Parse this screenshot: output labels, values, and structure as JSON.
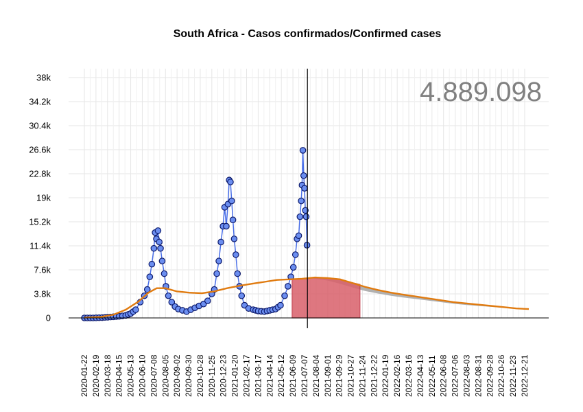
{
  "chart_data": {
    "type": "line",
    "title": "South Africa - Casos confirmados/Confirmed cases",
    "total_label": "4.889.098",
    "ylim": [
      0,
      38000
    ],
    "y_ticks": [
      0,
      3800,
      7600,
      11400,
      15200,
      19000,
      22800,
      26600,
      30400,
      34200,
      38000
    ],
    "y_tick_labels": [
      "0",
      "3.8k",
      "7.6k",
      "11.4k",
      "15.2k",
      "19k",
      "22.8k",
      "26.6k",
      "30.4k",
      "34.2k",
      "38k"
    ],
    "x_range": [
      "2020-01-22",
      "2022-12-31"
    ],
    "x_ticks": [
      "2020-01-22",
      "2020-02-19",
      "2020-03-18",
      "2020-04-15",
      "2020-05-13",
      "2020-06-10",
      "2020-07-08",
      "2020-08-05",
      "2020-09-02",
      "2020-09-30",
      "2020-10-28",
      "2020-11-25",
      "2020-12-23",
      "2021-01-20",
      "2021-02-17",
      "2021-03-17",
      "2021-04-14",
      "2021-05-12",
      "2021-06-09",
      "2021-07-07",
      "2021-08-04",
      "2021-09-01",
      "2021-09-29",
      "2021-10-27",
      "2021-11-24",
      "2021-12-22",
      "2022-01-19",
      "2022-02-16",
      "2022-03-16",
      "2022-04-13",
      "2022-05-11",
      "2022-06-08",
      "2022-07-06",
      "2022-08-03",
      "2022-08-31",
      "2022-09-28",
      "2022-10-26",
      "2022-11-23",
      "2022-12-21"
    ],
    "current_date": "2021-07-14",
    "grid": true,
    "colors": {
      "points_fill": "#6b8ef0",
      "points_stroke": "#0d1a6b",
      "observed_line": "#4a6fe8",
      "fitted_curve": "#e07b10",
      "forecast_band": "#a9a9a9",
      "forecast_area": "#d9606a",
      "current_date_line": "#000000",
      "grid": "#e6e6e6"
    },
    "series": [
      {
        "kind": "observed",
        "points": [
          [
            "2020-01-22",
            0
          ],
          [
            "2020-02-12",
            0
          ],
          [
            "2020-03-05",
            50
          ],
          [
            "2020-03-25",
            150
          ],
          [
            "2020-04-15",
            250
          ],
          [
            "2020-05-01",
            400
          ],
          [
            "2020-05-13",
            700
          ],
          [
            "2020-05-25",
            1300
          ],
          [
            "2020-06-05",
            2500
          ],
          [
            "2020-06-15",
            3500
          ],
          [
            "2020-06-22",
            4500
          ],
          [
            "2020-06-28",
            6500
          ],
          [
            "2020-07-03",
            8500
          ],
          [
            "2020-07-08",
            11000
          ],
          [
            "2020-07-11",
            13500
          ],
          [
            "2020-07-14",
            12500
          ],
          [
            "2020-07-18",
            13800
          ],
          [
            "2020-07-21",
            12000
          ],
          [
            "2020-07-24",
            11000
          ],
          [
            "2020-07-28",
            9000
          ],
          [
            "2020-08-02",
            7000
          ],
          [
            "2020-08-06",
            5000
          ],
          [
            "2020-08-12",
            3500
          ],
          [
            "2020-08-20",
            2500
          ],
          [
            "2020-08-28",
            1800
          ],
          [
            "2020-09-05",
            1400
          ],
          [
            "2020-09-15",
            1200
          ],
          [
            "2020-09-25",
            1000
          ],
          [
            "2020-10-05",
            1300
          ],
          [
            "2020-10-15",
            1600
          ],
          [
            "2020-10-25",
            1900
          ],
          [
            "2020-11-05",
            2200
          ],
          [
            "2020-11-15",
            2700
          ],
          [
            "2020-11-25",
            3800
          ],
          [
            "2020-12-01",
            4500
          ],
          [
            "2020-12-07",
            7000
          ],
          [
            "2020-12-12",
            9000
          ],
          [
            "2020-12-17",
            12000
          ],
          [
            "2020-12-22",
            14500
          ],
          [
            "2020-12-26",
            17500
          ],
          [
            "2020-12-30",
            14500
          ],
          [
            "2021-01-03",
            18000
          ],
          [
            "2021-01-06",
            21800
          ],
          [
            "2021-01-09",
            21500
          ],
          [
            "2021-01-12",
            18500
          ],
          [
            "2021-01-15",
            15500
          ],
          [
            "2021-01-18",
            12500
          ],
          [
            "2021-01-22",
            10000
          ],
          [
            "2021-01-26",
            7000
          ],
          [
            "2021-01-31",
            5000
          ],
          [
            "2021-02-05",
            3500
          ],
          [
            "2021-02-12",
            2000
          ],
          [
            "2021-02-22",
            1500
          ],
          [
            "2021-03-05",
            1300
          ],
          [
            "2021-03-17",
            1100
          ],
          [
            "2021-04-01",
            1000
          ],
          [
            "2021-04-14",
            1200
          ],
          [
            "2021-04-28",
            1400
          ],
          [
            "2021-05-10",
            2000
          ],
          [
            "2021-05-20",
            3500
          ],
          [
            "2021-05-28",
            5000
          ],
          [
            "2021-06-04",
            6500
          ],
          [
            "2021-06-10",
            8000
          ],
          [
            "2021-06-15",
            10000
          ],
          [
            "2021-06-19",
            12500
          ],
          [
            "2021-06-23",
            13000
          ],
          [
            "2021-06-26",
            16000
          ],
          [
            "2021-06-29",
            18500
          ],
          [
            "2021-07-01",
            21000
          ],
          [
            "2021-07-03",
            26500
          ],
          [
            "2021-07-05",
            22500
          ],
          [
            "2021-07-07",
            20500
          ],
          [
            "2021-07-09",
            17000
          ],
          [
            "2021-07-11",
            16000
          ],
          [
            "2021-07-13",
            11500
          ]
        ]
      },
      {
        "kind": "fitted",
        "points": [
          [
            "2020-01-22",
            50
          ],
          [
            "2020-03-01",
            150
          ],
          [
            "2020-04-01",
            500
          ],
          [
            "2020-05-01",
            1300
          ],
          [
            "2020-06-01",
            2600
          ],
          [
            "2020-06-25",
            4000
          ],
          [
            "2020-07-15",
            4700
          ],
          [
            "2020-08-05",
            4700
          ],
          [
            "2020-09-01",
            4200
          ],
          [
            "2020-10-01",
            4000
          ],
          [
            "2020-11-01",
            3900
          ],
          [
            "2020-12-01",
            4200
          ],
          [
            "2021-01-01",
            4700
          ],
          [
            "2021-02-01",
            5100
          ],
          [
            "2021-03-01",
            5400
          ],
          [
            "2021-04-01",
            5700
          ],
          [
            "2021-05-01",
            6000
          ],
          [
            "2021-06-01",
            6100
          ],
          [
            "2021-07-01",
            6200
          ],
          [
            "2021-08-01",
            6400
          ],
          [
            "2021-09-01",
            6300
          ],
          [
            "2021-10-01",
            6100
          ],
          [
            "2021-11-01",
            5500
          ],
          [
            "2021-12-01",
            4900
          ],
          [
            "2022-01-01",
            4400
          ],
          [
            "2022-02-01",
            4000
          ],
          [
            "2022-03-01",
            3700
          ],
          [
            "2022-04-01",
            3400
          ],
          [
            "2022-05-01",
            3100
          ],
          [
            "2022-06-01",
            2800
          ],
          [
            "2022-07-01",
            2500
          ],
          [
            "2022-08-01",
            2300
          ],
          [
            "2022-09-01",
            2100
          ],
          [
            "2022-10-01",
            1900
          ],
          [
            "2022-11-01",
            1700
          ],
          [
            "2022-12-01",
            1500
          ],
          [
            "2022-12-31",
            1400
          ]
        ]
      },
      {
        "kind": "forecast_band_lower",
        "points": [
          [
            "2021-07-14",
            6300
          ],
          [
            "2021-08-01",
            6200
          ],
          [
            "2021-09-01",
            5900
          ],
          [
            "2021-10-01",
            5400
          ],
          [
            "2021-11-01",
            4800
          ],
          [
            "2021-12-01",
            4250
          ],
          [
            "2022-01-01",
            3850
          ],
          [
            "2022-02-01",
            3500
          ],
          [
            "2022-03-01",
            3250
          ],
          [
            "2022-04-01",
            3000
          ],
          [
            "2022-05-01",
            2750
          ],
          [
            "2022-06-01",
            2500
          ],
          [
            "2022-07-01",
            2250
          ],
          [
            "2022-08-01",
            2050
          ],
          [
            "2022-09-01",
            1900
          ],
          [
            "2022-10-01",
            1750
          ],
          [
            "2022-11-01",
            1600
          ],
          [
            "2022-12-01",
            1450
          ],
          [
            "2022-12-31",
            1350
          ]
        ]
      }
    ],
    "forecast_area": {
      "start": "2021-06-07",
      "end": "2021-11-18",
      "points": [
        [
          "2021-06-07",
          6050
        ],
        [
          "2021-07-01",
          6200
        ],
        [
          "2021-08-01",
          6400
        ],
        [
          "2021-09-01",
          6350
        ],
        [
          "2021-10-01",
          6100
        ],
        [
          "2021-11-01",
          5550
        ],
        [
          "2021-11-18",
          5300
        ]
      ]
    }
  }
}
